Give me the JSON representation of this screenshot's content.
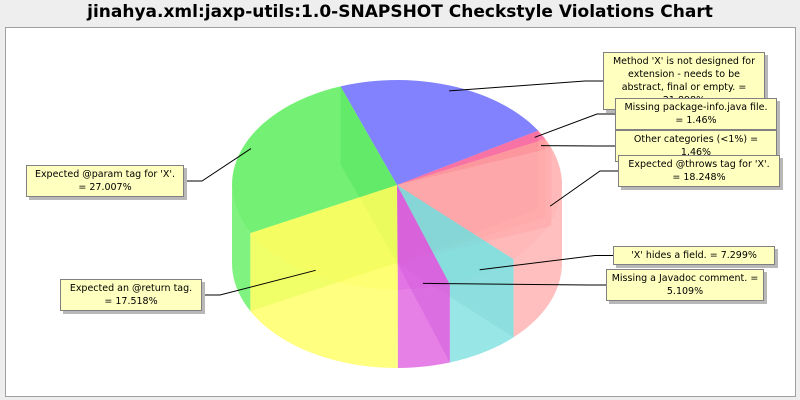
{
  "chart_data": {
    "type": "pie",
    "style": "3d",
    "title": "jinahya.xml:jaxp-utils:1.0-SNAPSHOT Checkstyle Violations Chart",
    "legend": "none",
    "slices": [
      {
        "label": "Method 'X' is not designed for extension - needs to be abstract, final or empty. = 21.898%",
        "value": 21.898,
        "color": "#6666ff"
      },
      {
        "label": "Missing package-info.java file. = 1.46%",
        "value": 1.46,
        "color": "#ff6699"
      },
      {
        "label": "Other categories (<1%) = 1.46%",
        "value": 1.46,
        "color": "#ff9999"
      },
      {
        "label": "Expected @throws tag for 'X'. = 18.248%",
        "value": 18.248,
        "color": "#ffaaaa"
      },
      {
        "label": "'X' hides a field. = 7.299%",
        "value": 7.299,
        "color": "#77dddd"
      },
      {
        "label": "Missing a Javadoc comment. = 5.109%",
        "value": 5.109,
        "color": "#dd55dd"
      },
      {
        "label": "Expected an @return tag. = 17.518%",
        "value": 17.518,
        "color": "#ffff55"
      },
      {
        "label": "Expected @param tag for 'X'. = 27.007%",
        "value": 27.007,
        "color": "#55ee55"
      }
    ]
  }
}
